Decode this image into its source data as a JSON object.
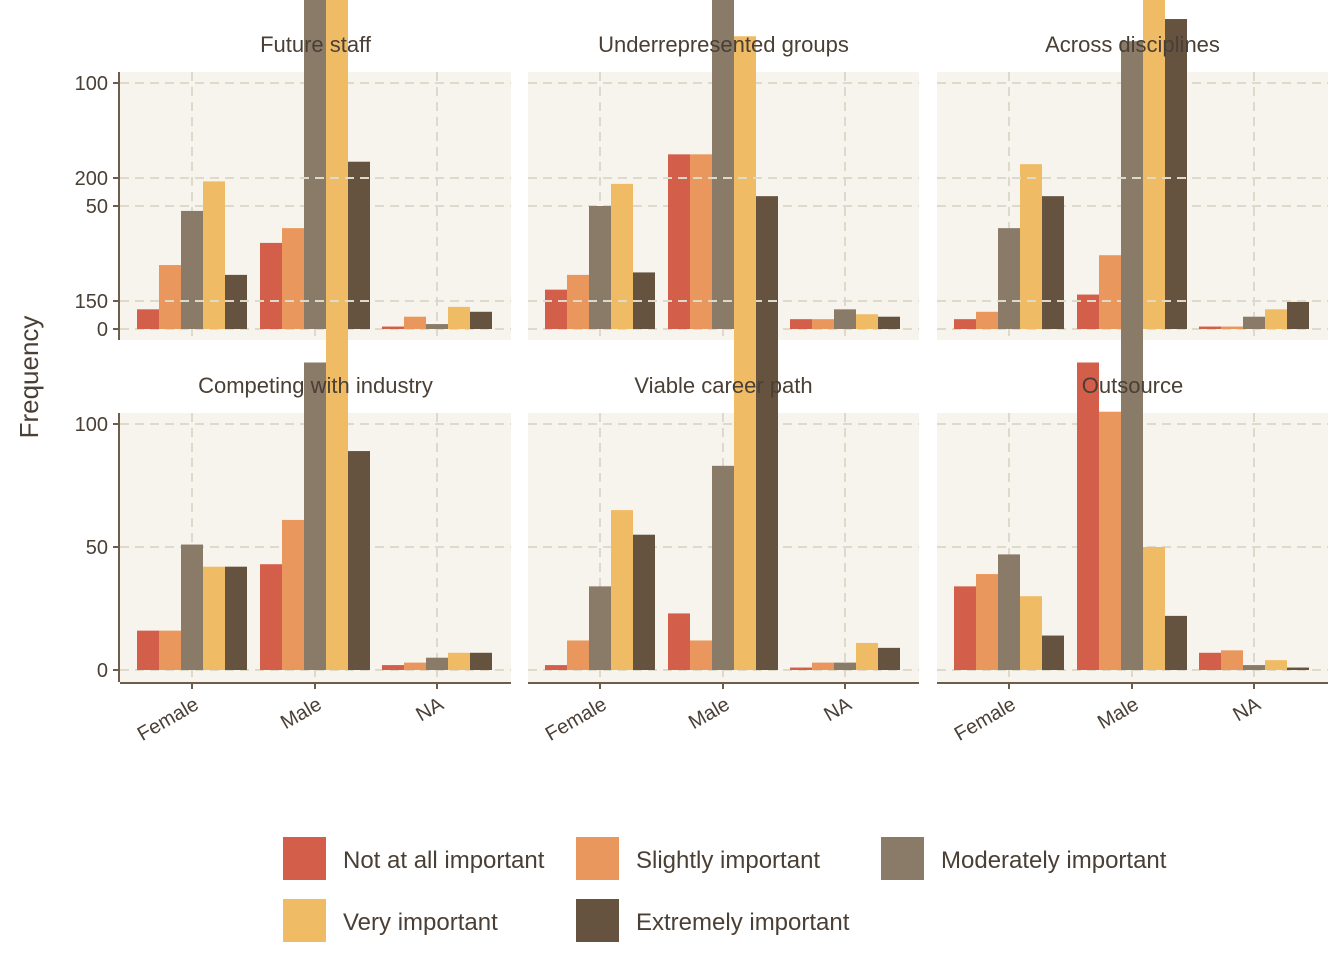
{
  "chart_data": {
    "type": "bar",
    "ylabel": "Frequency",
    "xlabel": "",
    "ylim": [
      0,
      200
    ],
    "yticks": [
      0,
      50,
      100,
      150,
      200
    ],
    "categories": [
      "Female",
      "Male",
      "NA"
    ],
    "legend_position": "bottom",
    "grid": true,
    "series": [
      {
        "name": "Not at all important",
        "color": "#d35f4b"
      },
      {
        "name": "Slightly important",
        "color": "#e9975c"
      },
      {
        "name": "Moderately important",
        "color": "#8a7b69"
      },
      {
        "name": "Very important",
        "color": "#f0bb65"
      },
      {
        "name": "Extremely important",
        "color": "#655340"
      }
    ],
    "panels": [
      {
        "title": "Future staff",
        "values": [
          [
            8,
            26,
            48,
            60,
            22
          ],
          [
            35,
            41,
            156,
            165,
            68
          ],
          [
            1,
            5,
            2,
            9,
            7
          ]
        ]
      },
      {
        "title": "Underrepresented groups",
        "values": [
          [
            16,
            22,
            50,
            59,
            23
          ],
          [
            71,
            71,
            150,
            119,
            54
          ],
          [
            4,
            4,
            8,
            6,
            5
          ]
        ]
      },
      {
        "title": "Across disciplines",
        "values": [
          [
            4,
            7,
            41,
            67,
            54
          ],
          [
            14,
            30,
            117,
            180,
            126
          ],
          [
            1,
            1,
            5,
            8,
            11
          ]
        ]
      },
      {
        "title": "Competing with industry",
        "values": [
          [
            16,
            16,
            51,
            42,
            42
          ],
          [
            43,
            61,
            125,
            145,
            89
          ],
          [
            2,
            3,
            5,
            7,
            7
          ]
        ]
      },
      {
        "title": "Viable career path",
        "values": [
          [
            2,
            12,
            34,
            65,
            55
          ],
          [
            23,
            12,
            83,
            198,
            148
          ],
          [
            1,
            3,
            3,
            11,
            9
          ]
        ]
      },
      {
        "title": "Outsource",
        "values": [
          [
            34,
            39,
            47,
            30,
            14
          ],
          [
            125,
            105,
            160,
            50,
            22
          ],
          [
            7,
            8,
            2,
            4,
            1
          ]
        ]
      }
    ]
  }
}
